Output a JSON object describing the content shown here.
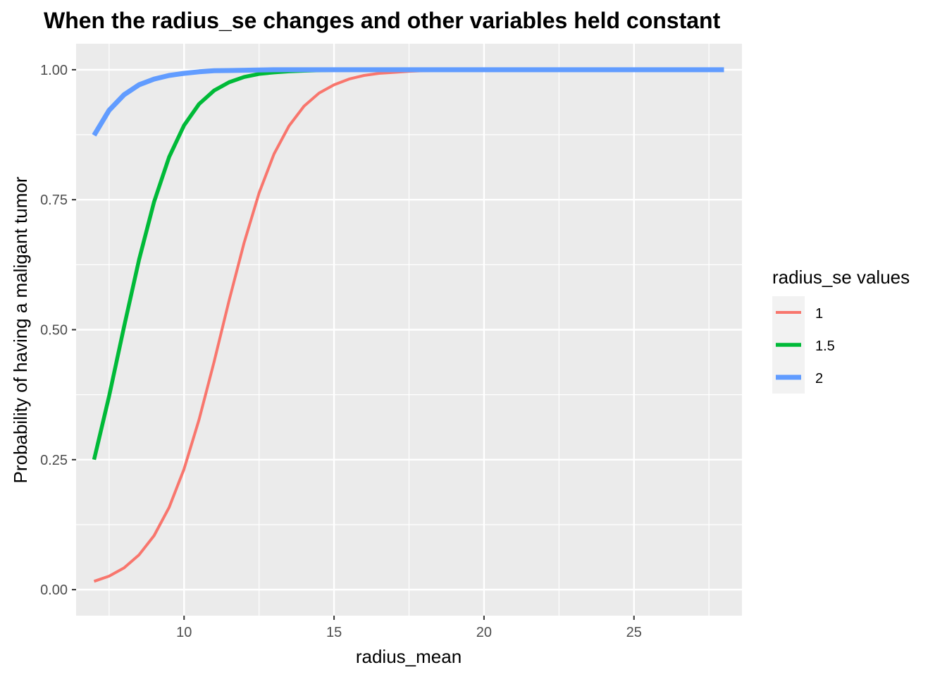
{
  "chart_data": {
    "type": "line",
    "title": "When the radius_se changes and other variables held constant",
    "xlabel": "radius_mean",
    "ylabel": "Probability of having a maligant tumor",
    "xlim": [
      6.4,
      28.6
    ],
    "ylim": [
      -0.05,
      1.05
    ],
    "x_ticks": [
      10,
      15,
      20,
      25
    ],
    "x_tick_labels": [
      "10",
      "15",
      "20",
      "25"
    ],
    "y_ticks": [
      0,
      0.25,
      0.5,
      0.75,
      1.0
    ],
    "y_tick_labels": [
      "0.00",
      "0.25",
      "0.50",
      "0.75",
      "1.00"
    ],
    "grid": true,
    "legend": {
      "title": "radius_se values",
      "placement": "right"
    },
    "x": [
      7,
      7.5,
      8,
      8.5,
      9,
      9.5,
      10,
      10.5,
      11,
      11.5,
      12,
      12.5,
      13,
      13.5,
      14,
      14.5,
      15,
      15.5,
      16,
      16.5,
      17,
      17.5,
      18,
      19,
      20,
      21,
      22,
      23,
      24,
      25,
      26,
      27,
      28
    ],
    "series": [
      {
        "name": "1",
        "color": "#F8766D",
        "values": [
          0.016,
          0.026,
          0.042,
          0.067,
          0.104,
          0.158,
          0.232,
          0.327,
          0.438,
          0.556,
          0.667,
          0.763,
          0.838,
          0.892,
          0.93,
          0.955,
          0.971,
          0.982,
          0.989,
          0.993,
          0.995,
          0.997,
          0.998,
          0.999,
          1.0,
          1.0,
          1.0,
          1.0,
          1.0,
          1.0,
          1.0,
          1.0,
          1.0
        ]
      },
      {
        "name": "1.5",
        "color": "#00BA38",
        "values": [
          0.25,
          0.372,
          0.506,
          0.635,
          0.746,
          0.832,
          0.893,
          0.934,
          0.96,
          0.976,
          0.986,
          0.992,
          0.995,
          0.997,
          0.998,
          0.999,
          0.9995,
          1.0,
          1.0,
          1.0,
          1.0,
          1.0,
          1.0,
          1.0,
          1.0,
          1.0,
          1.0,
          1.0,
          1.0,
          1.0,
          1.0,
          1.0,
          1.0
        ]
      },
      {
        "name": "2",
        "color": "#619CFF",
        "values": [
          0.874,
          0.922,
          0.952,
          0.971,
          0.982,
          0.989,
          0.993,
          0.996,
          0.998,
          0.9985,
          0.999,
          0.9995,
          1.0,
          1.0,
          1.0,
          1.0,
          1.0,
          1.0,
          1.0,
          1.0,
          1.0,
          1.0,
          1.0,
          1.0,
          1.0,
          1.0,
          1.0,
          1.0,
          1.0,
          1.0,
          1.0,
          1.0,
          1.0
        ]
      }
    ]
  }
}
